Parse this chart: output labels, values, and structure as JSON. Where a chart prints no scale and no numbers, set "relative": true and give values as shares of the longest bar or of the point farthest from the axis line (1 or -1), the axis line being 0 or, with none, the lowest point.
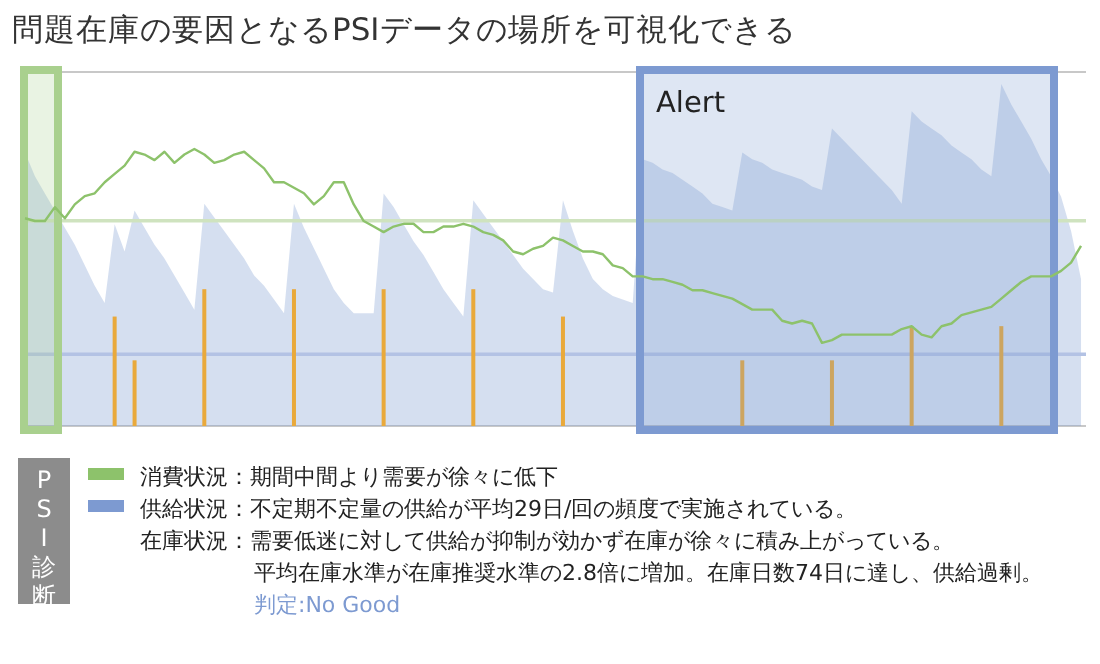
{
  "chart_data": [
    {
      "type": "area",
      "title": "問題在庫の要因となるPSIデータの場所を可視化できる",
      "relative": true,
      "categories": [
        null,
        null,
        null,
        null,
        null,
        null,
        null,
        null,
        null,
        null,
        null,
        null,
        null,
        null,
        null,
        null,
        null,
        null,
        null,
        null,
        null,
        null,
        null,
        null,
        null,
        null,
        null,
        null,
        null,
        null,
        null,
        null,
        null,
        null,
        null,
        null,
        null,
        null,
        null,
        null,
        null,
        null,
        null,
        null,
        null,
        null,
        null,
        null,
        null,
        null,
        null,
        null,
        null,
        null,
        null,
        null,
        null,
        null,
        null,
        null,
        null,
        null,
        null,
        null,
        null,
        null,
        null,
        null,
        null,
        null,
        null,
        null,
        null,
        null,
        null,
        null,
        null,
        null,
        null,
        null,
        null,
        null,
        null,
        null,
        null,
        null,
        null,
        null,
        null,
        null,
        null,
        null,
        null,
        null,
        null,
        null,
        null,
        null,
        null,
        null,
        null,
        null,
        null,
        null,
        null,
        null,
        null
      ],
      "series": [
        {
          "name": "供給状況：不定期不定量の供給が平均29日/回の頻度で実施されている。",
          "color": "#7d9ad1",
          "values": [
            0.8,
            0.73,
            0.68,
            0.63,
            0.58,
            0.53,
            0.47,
            0.41,
            0.36,
            0.59,
            0.51,
            0.63,
            0.58,
            0.53,
            0.49,
            0.44,
            0.39,
            0.34,
            0.65,
            0.61,
            0.57,
            0.53,
            0.49,
            0.44,
            0.41,
            0.37,
            0.33,
            0.65,
            0.58,
            0.52,
            0.46,
            0.4,
            0.36,
            0.33,
            0.33,
            0.33,
            0.68,
            0.64,
            0.59,
            0.54,
            0.5,
            0.45,
            0.4,
            0.36,
            0.32,
            0.66,
            0.62,
            0.58,
            0.54,
            0.5,
            0.46,
            0.43,
            0.4,
            0.39,
            0.66,
            0.57,
            0.49,
            0.43,
            0.4,
            0.38,
            0.37,
            0.36,
            0.78,
            0.77,
            0.75,
            0.74,
            0.72,
            0.7,
            0.68,
            0.65,
            0.64,
            0.63,
            0.8,
            0.78,
            0.77,
            0.75,
            0.74,
            0.73,
            0.72,
            0.7,
            0.69,
            0.87,
            0.84,
            0.81,
            0.78,
            0.75,
            0.72,
            0.69,
            0.65,
            0.92,
            0.89,
            0.87,
            0.85,
            0.82,
            0.8,
            0.78,
            0.75,
            0.73,
            1,
            0.94,
            0.89,
            0.84,
            0.78,
            0.73,
            0.67,
            0.57,
            0.43
          ]
        }
      ],
      "ref_lines": [
        {
          "axis": "y",
          "value": 0.6,
          "color": "#cfe3bf"
        },
        {
          "axis": "y",
          "value": 0.21,
          "color": "#b3c2e4"
        }
      ],
      "legend": "bottom",
      "annotations": [
        "PSI診断",
        "在庫状況：需要低迷に対して供給が抑制が効かず在庫が徐々に積み上がっている。",
        "平均在庫水準が在庫推奨水準の2.8倍に増加。在庫日数74日に達し、供給過剰。",
        "判定:No Good",
        "Alert"
      ]
    },
    {
      "type": "bar",
      "relative": true,
      "categories": [
        null,
        null,
        null,
        null,
        null,
        null,
        null,
        null,
        null,
        null,
        null,
        null,
        null,
        null,
        null,
        null,
        null,
        null,
        null,
        null,
        null,
        null,
        null,
        null,
        null,
        null,
        null,
        null,
        null,
        null,
        null,
        null,
        null,
        null,
        null,
        null,
        null,
        null,
        null,
        null,
        null,
        null,
        null,
        null,
        null,
        null,
        null,
        null,
        null,
        null,
        null,
        null,
        null,
        null,
        null,
        null,
        null,
        null,
        null,
        null,
        null,
        null,
        null,
        null,
        null,
        null,
        null,
        null,
        null,
        null,
        null,
        null,
        null,
        null,
        null,
        null,
        null,
        null,
        null,
        null,
        null,
        null,
        null,
        null,
        null,
        null,
        null,
        null,
        null,
        null,
        null,
        null,
        null,
        null,
        null,
        null,
        null,
        null,
        null,
        null,
        null,
        null,
        null,
        null,
        null,
        null,
        null
      ],
      "series": [
        {
          "color": "#e9a93b",
          "values": [
            null,
            null,
            null,
            null,
            null,
            null,
            null,
            null,
            null,
            0.8,
            null,
            0.48,
            null,
            null,
            null,
            null,
            null,
            null,
            1,
            null,
            null,
            null,
            null,
            null,
            null,
            null,
            null,
            1,
            null,
            null,
            null,
            null,
            null,
            null,
            null,
            null,
            1,
            null,
            null,
            null,
            null,
            null,
            null,
            null,
            null,
            1,
            null,
            null,
            null,
            null,
            null,
            null,
            null,
            null,
            0.8,
            null,
            null,
            null,
            null,
            null,
            null,
            null,
            null,
            null,
            null,
            null,
            null,
            null,
            null,
            null,
            null,
            null,
            0.48,
            null,
            null,
            null,
            null,
            null,
            null,
            null,
            null,
            0.48,
            null,
            null,
            null,
            null,
            null,
            null,
            null,
            0.73,
            null,
            null,
            null,
            null,
            null,
            null,
            null,
            null,
            0.73,
            null,
            null,
            null,
            null,
            null,
            null,
            null,
            null
          ]
        }
      ]
    },
    {
      "type": "line",
      "relative": true,
      "categories": [
        null,
        null,
        null,
        null,
        null,
        null,
        null,
        null,
        null,
        null,
        null,
        null,
        null,
        null,
        null,
        null,
        null,
        null,
        null,
        null,
        null,
        null,
        null,
        null,
        null,
        null,
        null,
        null,
        null,
        null,
        null,
        null,
        null,
        null,
        null,
        null,
        null,
        null,
        null,
        null,
        null,
        null,
        null,
        null,
        null,
        null,
        null,
        null,
        null,
        null,
        null,
        null,
        null,
        null,
        null,
        null,
        null,
        null,
        null,
        null,
        null,
        null,
        null,
        null,
        null,
        null,
        null,
        null,
        null,
        null,
        null,
        null,
        null,
        null,
        null,
        null,
        null,
        null,
        null,
        null,
        null,
        null,
        null,
        null,
        null,
        null,
        null,
        null,
        null,
        null,
        null,
        null,
        null,
        null,
        null,
        null,
        null,
        null,
        null,
        null,
        null,
        null,
        null,
        null,
        null,
        null,
        null
      ],
      "series": [
        {
          "name": "消費状況：期間中間より需要が徐々に低下",
          "color": "#8dc26b",
          "values": [
            0.75,
            0.74,
            0.74,
            0.79,
            0.75,
            0.8,
            0.83,
            0.84,
            0.88,
            0.91,
            0.94,
            0.99,
            0.98,
            0.96,
            0.99,
            0.95,
            0.98,
            1,
            0.98,
            0.95,
            0.96,
            0.98,
            0.99,
            0.96,
            0.93,
            0.88,
            0.88,
            0.86,
            0.84,
            0.8,
            0.83,
            0.88,
            0.88,
            0.8,
            0.74,
            0.72,
            0.7,
            0.72,
            0.73,
            0.73,
            0.7,
            0.7,
            0.72,
            0.72,
            0.73,
            0.72,
            0.7,
            0.69,
            0.67,
            0.63,
            0.62,
            0.64,
            0.65,
            0.68,
            0.67,
            0.65,
            0.63,
            0.63,
            0.62,
            0.58,
            0.57,
            0.54,
            0.54,
            0.53,
            0.53,
            0.52,
            0.51,
            0.49,
            0.49,
            0.48,
            0.47,
            0.46,
            0.44,
            0.42,
            0.42,
            0.42,
            0.38,
            0.37,
            0.38,
            0.37,
            0.3,
            0.31,
            0.33,
            0.33,
            0.33,
            0.33,
            0.33,
            0.33,
            0.35,
            0.36,
            0.33,
            0.32,
            0.36,
            0.37,
            0.4,
            0.41,
            0.42,
            0.43,
            0.46,
            0.49,
            0.52,
            0.54,
            0.54,
            0.54,
            0.56,
            0.59,
            0.65
          ]
        }
      ],
      "legend": "bottom"
    }
  ]
}
